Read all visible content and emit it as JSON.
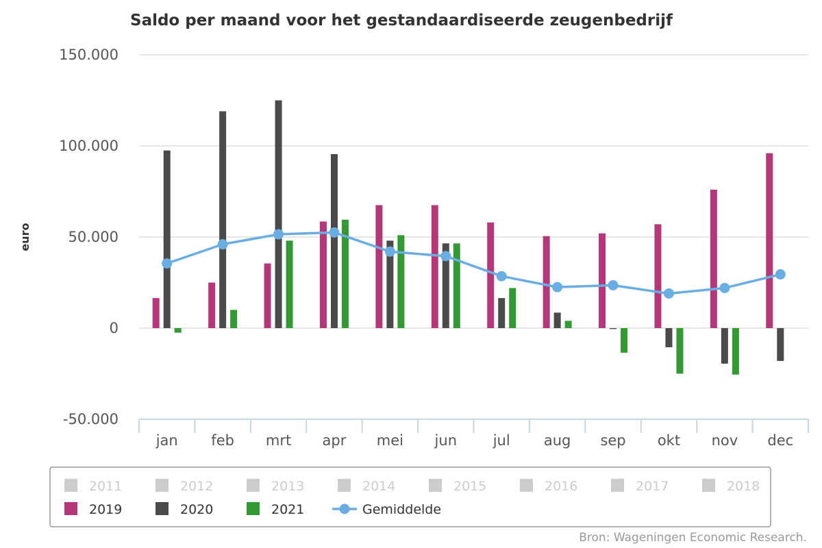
{
  "chart_data": {
    "type": "bar",
    "title": "Saldo per maand voor het gestandaardiseerde zeugenbedrijf",
    "ylabel": "euro",
    "xlabel": "",
    "ylim": [
      -50000,
      150000
    ],
    "yticks": [
      "150.000",
      "100.000",
      "50.000",
      "0",
      "-50.000"
    ],
    "ytick_values": [
      150000,
      100000,
      50000,
      0,
      -50000
    ],
    "categories": [
      "jan",
      "feb",
      "mrt",
      "apr",
      "mei",
      "jun",
      "jul",
      "aug",
      "sep",
      "okt",
      "nov",
      "dec"
    ],
    "grid": true,
    "legend_position": "bottom",
    "source": "Bron: Wageningen Economic Research.",
    "legend_hidden": [
      {
        "name": "2011"
      },
      {
        "name": "2012"
      },
      {
        "name": "2013"
      },
      {
        "name": "2014"
      },
      {
        "name": "2015"
      },
      {
        "name": "2016"
      },
      {
        "name": "2017"
      },
      {
        "name": "2018"
      }
    ],
    "series": [
      {
        "name": "2019",
        "type": "bar",
        "color": "#b5377a",
        "values": [
          16500,
          25000,
          35500,
          58500,
          67500,
          67500,
          58000,
          50500,
          52000,
          57000,
          76000,
          96000
        ]
      },
      {
        "name": "2020",
        "type": "bar",
        "color": "#4a4a4a",
        "values": [
          97500,
          119000,
          125000,
          95500,
          48000,
          46500,
          16500,
          8500,
          -500,
          -10500,
          -19500,
          -18000
        ]
      },
      {
        "name": "2021",
        "type": "bar",
        "color": "#339933",
        "values": [
          -2500,
          10000,
          48000,
          59500,
          51000,
          46500,
          22000,
          4000,
          -13500,
          -25000,
          -25500,
          null
        ]
      },
      {
        "name": "Gemiddelde",
        "type": "line",
        "color": "#6aade2",
        "values": [
          35500,
          46000,
          51500,
          52500,
          42000,
          39500,
          28500,
          22500,
          23500,
          19000,
          22000,
          29500
        ]
      }
    ]
  }
}
